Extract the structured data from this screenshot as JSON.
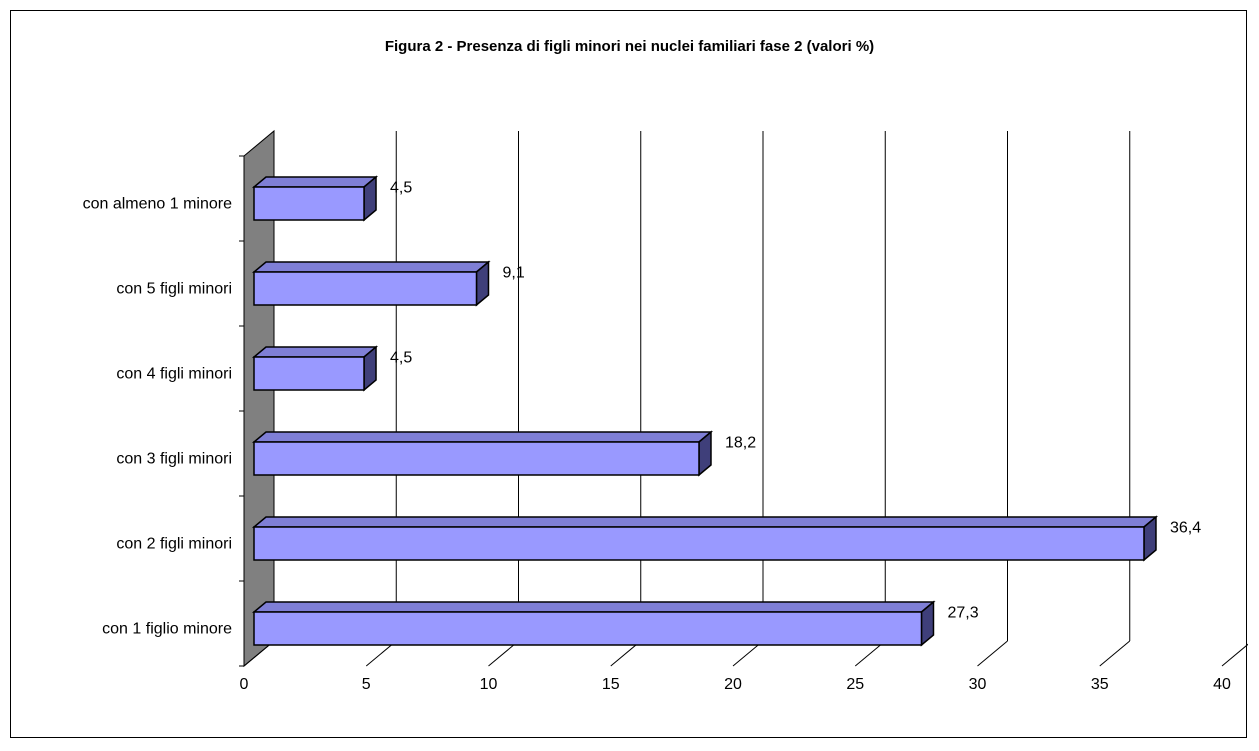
{
  "chart_data": {
    "type": "bar",
    "orientation": "horizontal",
    "style": "3d",
    "title": "Figura 2 - Presenza di figli minori nei nuclei familiari fase 2 (valori %)",
    "xlabel": "",
    "ylabel": "",
    "categories": [
      "con almeno 1 minore",
      "con 5 figli minori",
      "con 4 figli minori",
      "con 3 figli minori",
      "con 2 figli minori",
      "con 1 figlio minore"
    ],
    "values": [
      4.5,
      9.1,
      4.5,
      18.2,
      36.4,
      27.3
    ],
    "value_labels": [
      "4,5",
      "9,1",
      "4,5",
      "18,2",
      "36,4",
      "27,3"
    ],
    "xlim": [
      0,
      40
    ],
    "xticks": [
      0,
      5,
      10,
      15,
      20,
      25,
      30,
      35,
      40
    ],
    "grid": true,
    "legend": "none",
    "colors": {
      "bar_front": "#9999ff",
      "bar_top": "#7f7fd6",
      "bar_side": "#3f3f7a",
      "wall": "#808080",
      "grid": "#000000"
    }
  }
}
